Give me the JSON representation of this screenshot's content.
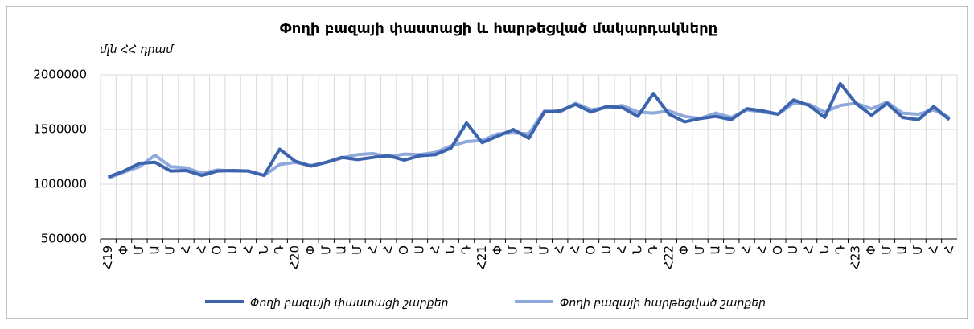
{
  "chart_data": {
    "type": "line",
    "title": "Փողի բազայի փաստացի և հարթեցված մակարդակները",
    "subtitle": "մլն ՀՀ դրամ",
    "categories": [
      "Հ19",
      "Փ",
      "Մ",
      "Ա",
      "Մ",
      "Հ",
      "Հ",
      "Օ",
      "Ս",
      "Հ",
      "Ն",
      "Դ",
      "Հ20",
      "Փ",
      "Մ",
      "Ա",
      "Մ",
      "Հ",
      "Հ",
      "Օ",
      "Ս",
      "Հ",
      "Ն",
      "Դ",
      "Հ21",
      "Փ",
      "Մ",
      "Ա",
      "Մ",
      "Հ",
      "Հ",
      "Օ",
      "Ս",
      "Հ",
      "Ն",
      "Դ",
      "Հ22",
      "Փ",
      "Մ",
      "Ա",
      "Մ",
      "Հ",
      "Հ",
      "Օ",
      "Ս",
      "Հ",
      "Ն",
      "Դ",
      "Հ23",
      "Փ",
      "Մ",
      "Ա",
      "Մ",
      "Հ",
      "Հ"
    ],
    "series": [
      {
        "name": "Փողի բազայի փաստացի շարքեր",
        "color": "#3c64ad",
        "values": [
          1065000,
          1120000,
          1190000,
          1200000,
          1120000,
          1125000,
          1080000,
          1120000,
          1125000,
          1120000,
          1080000,
          1320000,
          1210000,
          1165000,
          1200000,
          1245000,
          1225000,
          1245000,
          1260000,
          1220000,
          1260000,
          1270000,
          1330000,
          1560000,
          1380000,
          1440000,
          1500000,
          1420000,
          1660000,
          1670000,
          1730000,
          1660000,
          1710000,
          1700000,
          1620000,
          1830000,
          1640000,
          1570000,
          1600000,
          1620000,
          1590000,
          1690000,
          1670000,
          1640000,
          1770000,
          1720000,
          1610000,
          1920000,
          1740000,
          1630000,
          1740000,
          1610000,
          1590000,
          1710000,
          1590000
        ]
      },
      {
        "name": "Փողի բազայի հարթեցված շարքեր",
        "color": "#8fa9dc",
        "values": [
          1055000,
          1110000,
          1160000,
          1265000,
          1160000,
          1150000,
          1100000,
          1130000,
          1120000,
          1120000,
          1080000,
          1180000,
          1200000,
          1170000,
          1200000,
          1240000,
          1270000,
          1280000,
          1250000,
          1275000,
          1270000,
          1290000,
          1350000,
          1390000,
          1400000,
          1460000,
          1470000,
          1460000,
          1670000,
          1660000,
          1740000,
          1680000,
          1700000,
          1720000,
          1660000,
          1650000,
          1670000,
          1620000,
          1600000,
          1650000,
          1610000,
          1680000,
          1660000,
          1640000,
          1740000,
          1730000,
          1660000,
          1720000,
          1740000,
          1690000,
          1750000,
          1650000,
          1640000,
          1680000,
          1610000
        ]
      }
    ],
    "ylim": [
      500000,
      2000000
    ],
    "yticks": [
      500000,
      1000000,
      1500000,
      2000000
    ],
    "grid": true,
    "legend": "bottom"
  }
}
